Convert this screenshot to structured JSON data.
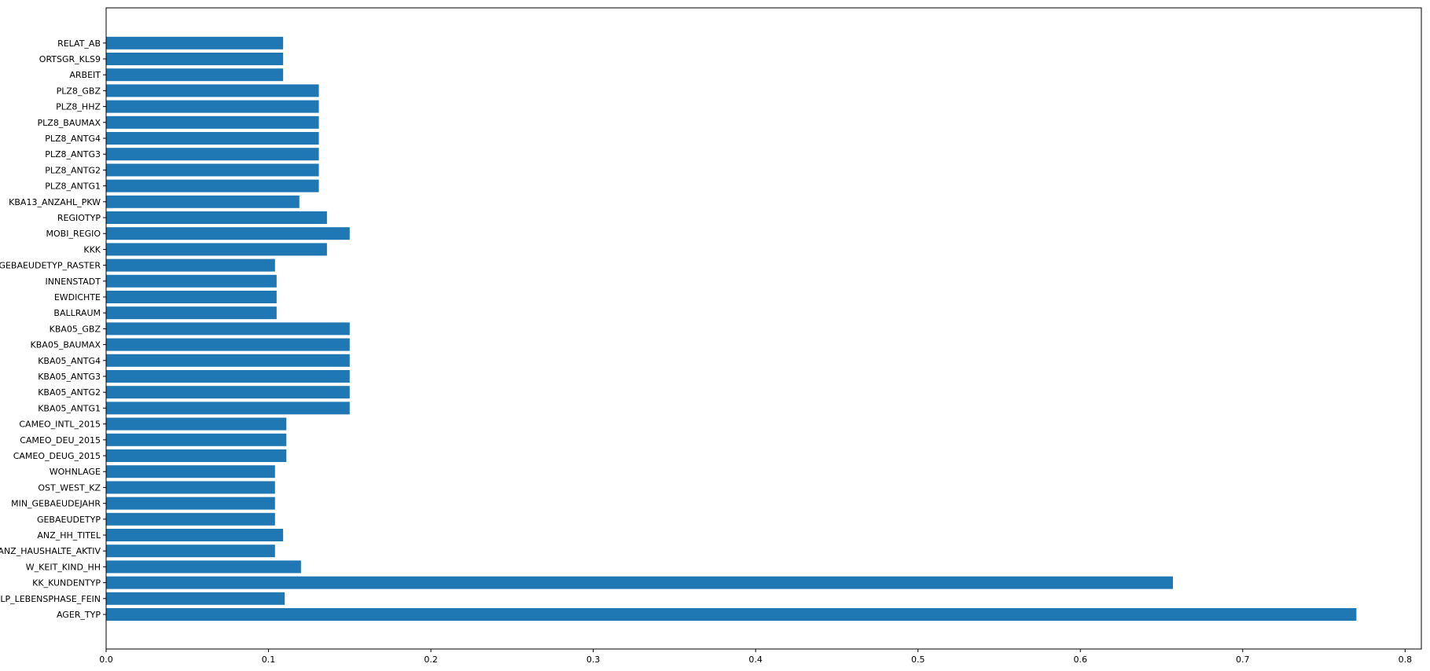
{
  "chart_data": {
    "type": "bar",
    "orientation": "horizontal",
    "title": "",
    "xlabel": "",
    "ylabel": "",
    "xlim": [
      0,
      0.81
    ],
    "grid": false,
    "bar_color": "#1f77b4",
    "x_ticks": [
      "0.0",
      "0.1",
      "0.2",
      "0.3",
      "0.4",
      "0.5",
      "0.6",
      "0.7",
      "0.8"
    ],
    "categories": [
      "AGER_TYP",
      "LP_LEBENSPHASE_FEIN",
      "KK_KUNDENTYP",
      "W_KEIT_KIND_HH",
      "ANZ_HAUSHALTE_AKTIV",
      "ANZ_HH_TITEL",
      "GEBAEUDETYP",
      "MIN_GEBAEUDEJAHR",
      "OST_WEST_KZ",
      "WOHNLAGE",
      "CAMEO_DEUG_2015",
      "CAMEO_DEU_2015",
      "CAMEO_INTL_2015",
      "KBA05_ANTG1",
      "KBA05_ANTG2",
      "KBA05_ANTG3",
      "KBA05_ANTG4",
      "KBA05_BAUMAX",
      "KBA05_GBZ",
      "BALLRAUM",
      "EWDICHTE",
      "INNENSTADT",
      "GEBAEUDETYP_RASTER",
      "KKK",
      "MOBI_REGIO",
      "REGIOTYP",
      "KBA13_ANZAHL_PKW",
      "PLZ8_ANTG1",
      "PLZ8_ANTG2",
      "PLZ8_ANTG3",
      "PLZ8_ANTG4",
      "PLZ8_BAUMAX",
      "PLZ8_HHZ",
      "PLZ8_GBZ",
      "ARBEIT",
      "ORTSGR_KLS9",
      "RELAT_AB"
    ],
    "values": [
      0.77,
      0.11,
      0.657,
      0.12,
      0.104,
      0.109,
      0.104,
      0.104,
      0.104,
      0.104,
      0.111,
      0.111,
      0.111,
      0.15,
      0.15,
      0.15,
      0.15,
      0.15,
      0.15,
      0.105,
      0.105,
      0.105,
      0.104,
      0.136,
      0.15,
      0.136,
      0.119,
      0.131,
      0.131,
      0.131,
      0.131,
      0.131,
      0.131,
      0.131,
      0.109,
      0.109,
      0.109
    ]
  }
}
